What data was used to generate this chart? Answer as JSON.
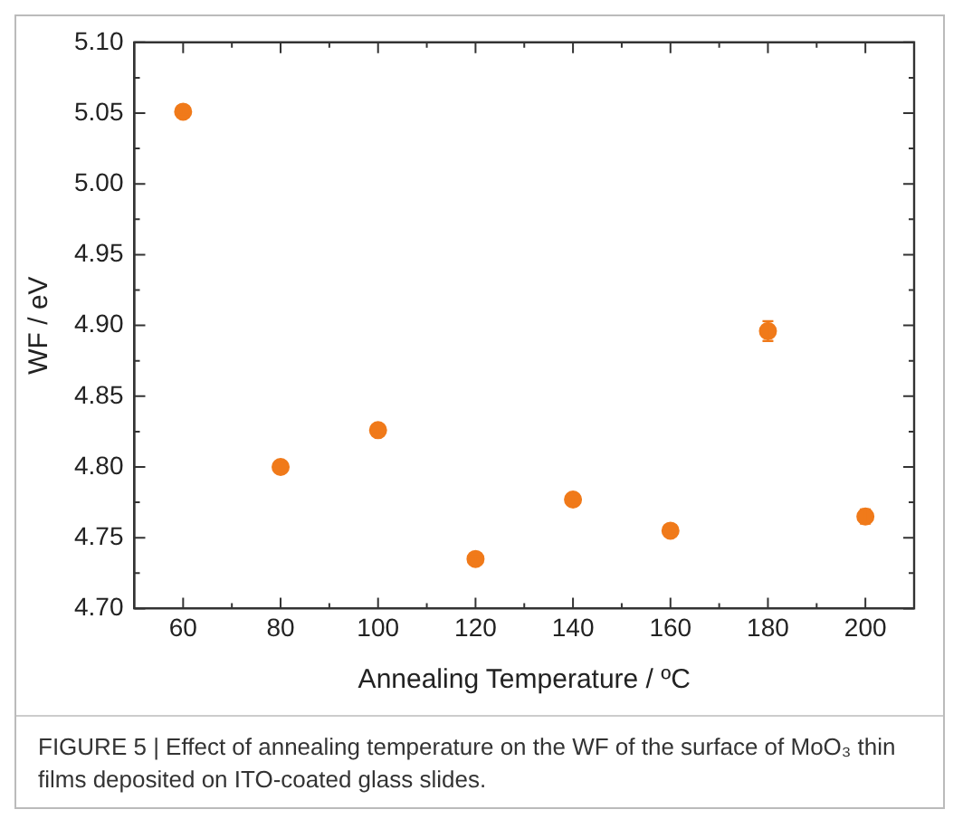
{
  "chart_data": {
    "type": "scatter",
    "xlabel": "Annealing Temperature / ºC",
    "ylabel": "WF / eV",
    "x": [
      60,
      80,
      100,
      120,
      140,
      160,
      180,
      200
    ],
    "series": [
      {
        "color": "#f07a1a",
        "values": [
          5.051,
          4.8,
          4.826,
          4.735,
          4.777,
          4.755,
          4.896,
          4.765
        ],
        "errors": [
          0.002,
          0.002,
          0.002,
          0.002,
          0.002,
          0.002,
          0.007,
          0.005
        ]
      }
    ],
    "xlim": [
      50,
      210
    ],
    "xticks": [
      60,
      80,
      100,
      120,
      140,
      160,
      180,
      200
    ],
    "ylim": [
      4.7,
      5.1
    ],
    "yticks": [
      {
        "value": 4.7,
        "label": "4.70"
      },
      {
        "value": 4.75,
        "label": "4.75"
      },
      {
        "value": 4.8,
        "label": "4.80"
      },
      {
        "value": 4.85,
        "label": "4.85"
      },
      {
        "value": 4.9,
        "label": "4.90"
      },
      {
        "value": 4.95,
        "label": "4.95"
      },
      {
        "value": 5.0,
        "label": "5.00"
      },
      {
        "value": 5.05,
        "label": "5.05"
      },
      {
        "value": 5.1,
        "label": "5.10"
      }
    ],
    "marker": "circle",
    "legend": false,
    "annotations": [
      "FIGURE 5 | Effect of annealing temperature on the WF of the surface of MoO₃ thin films deposited on ITO-coated glass slides."
    ]
  }
}
